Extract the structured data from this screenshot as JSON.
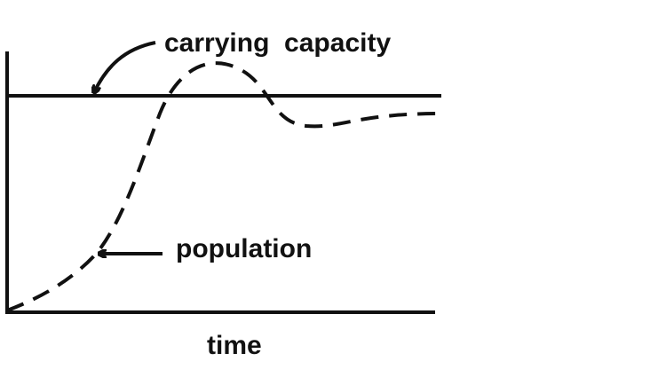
{
  "diagram": {
    "labels": {
      "carrying_capacity": "carrying  capacity",
      "population": "population",
      "x_axis": "time"
    },
    "curves": {
      "carrying_capacity_line": {
        "style": "solid"
      },
      "population_curve": {
        "style": "dashed"
      }
    },
    "colors": {
      "ink": "#111111",
      "background": "#ffffff"
    }
  }
}
